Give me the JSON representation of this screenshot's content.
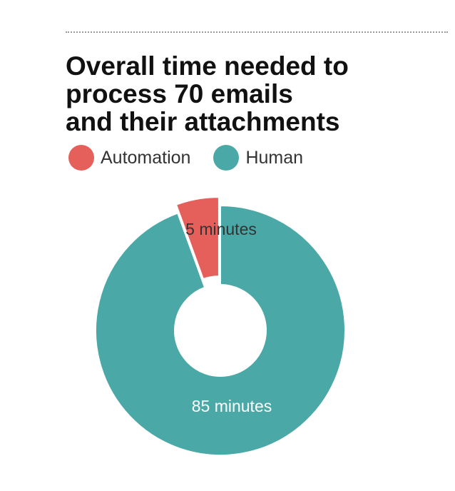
{
  "title_lines": [
    "Overall time needed to",
    "process 70 emails",
    "and their attachments"
  ],
  "legend": [
    {
      "label": "Automation",
      "color": "#e5605b"
    },
    {
      "label": "Human",
      "color": "#4aa9a6"
    }
  ],
  "chart_data": {
    "type": "pie",
    "variant": "donut",
    "title": "Overall time needed to process 70 emails and their attachments",
    "categories": [
      "Automation",
      "Human"
    ],
    "values": [
      5,
      85
    ],
    "labels": [
      "5 minutes",
      "85 minutes"
    ],
    "colors": [
      "#e5605b",
      "#4aa9a6"
    ],
    "exploded": [
      "Automation"
    ],
    "legend_position": "top-left"
  }
}
